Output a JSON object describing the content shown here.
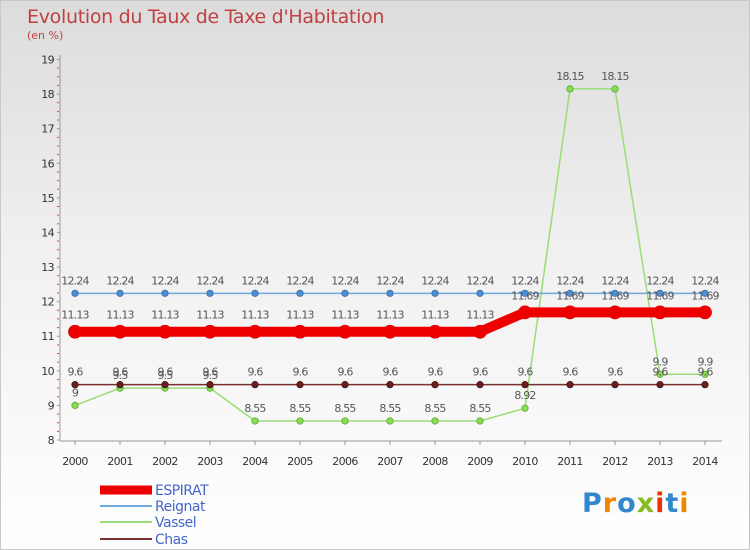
{
  "chart_data": {
    "type": "line",
    "title": "Evolution du Taux de Taxe d'Habitation",
    "subtitle": "(en %)",
    "xlabel": "",
    "ylabel": "",
    "categories": [
      "2000",
      "2001",
      "2002",
      "2003",
      "2004",
      "2005",
      "2006",
      "2007",
      "2008",
      "2009",
      "2010",
      "2011",
      "2012",
      "2013",
      "2014"
    ],
    "ylim": [
      8,
      19
    ],
    "yticks": [
      "8",
      "9",
      "10",
      "11",
      "12",
      "13",
      "14",
      "15",
      "16",
      "17",
      "18",
      "19"
    ],
    "series": [
      {
        "name": "ESPIRAT",
        "color": "#ee0000",
        "values": [
          11.13,
          11.13,
          11.13,
          11.13,
          11.13,
          11.13,
          11.13,
          11.13,
          11.13,
          11.13,
          11.69,
          11.69,
          11.69,
          11.69,
          11.69
        ],
        "labels": [
          "11.13",
          "11.13",
          "11.13",
          "11.13",
          "11.13",
          "11.13",
          "11.13",
          "11.13",
          "11.13",
          "11.13",
          "11.69",
          "11.69",
          "11.69",
          "11.69",
          "11.69"
        ]
      },
      {
        "name": "Reignat",
        "color": "#6fa8dc",
        "values": [
          12.24,
          12.24,
          12.24,
          12.24,
          12.24,
          12.24,
          12.24,
          12.24,
          12.24,
          12.24,
          12.24,
          12.24,
          12.24,
          12.24,
          12.24
        ],
        "labels": [
          "12.24",
          "12.24",
          "12.24",
          "12.24",
          "12.24",
          "12.24",
          "12.24",
          "12.24",
          "12.24",
          "12.24",
          "12.24",
          "12.24",
          "12.24",
          "12.24",
          "12.24"
        ]
      },
      {
        "name": "Vassel",
        "color": "#99dd77",
        "values": [
          9,
          9.5,
          9.5,
          9.5,
          8.55,
          8.55,
          8.55,
          8.55,
          8.55,
          8.55,
          8.92,
          18.15,
          18.15,
          9.9,
          9.9
        ],
        "labels": [
          "9",
          "9.5",
          "9.5",
          "9.5",
          "8.55",
          "8.55",
          "8.55",
          "8.55",
          "8.55",
          "8.55",
          "8.92",
          "18.15",
          "18.15",
          "9.9",
          "9.9"
        ]
      },
      {
        "name": "Chas",
        "color": "#7a3030",
        "values": [
          9.6,
          9.6,
          9.6,
          9.6,
          9.6,
          9.6,
          9.6,
          9.6,
          9.6,
          9.6,
          9.6,
          9.6,
          9.6,
          9.6,
          9.6
        ],
        "labels": [
          "9.6",
          "9.6",
          "9.6",
          "9.6",
          "9.6",
          "9.6",
          "9.6",
          "9.6",
          "9.6",
          "9.6",
          "9.6",
          "9.6",
          "9.6",
          "9.6",
          "9.6"
        ]
      }
    ],
    "grid": false,
    "legend_position": "bottom-left"
  },
  "logo": {
    "text": "Proxiti"
  }
}
